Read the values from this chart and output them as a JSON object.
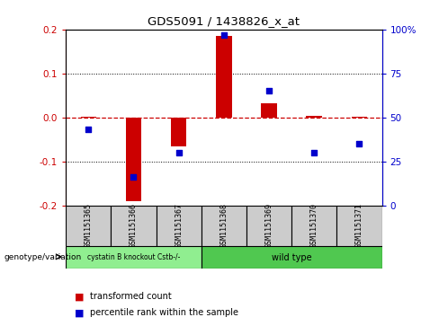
{
  "title": "GDS5091 / 1438826_x_at",
  "samples": [
    "GSM1151365",
    "GSM1151366",
    "GSM1151367",
    "GSM1151368",
    "GSM1151369",
    "GSM1151370",
    "GSM1151371"
  ],
  "red_values": [
    0.002,
    -0.19,
    -0.065,
    0.185,
    0.033,
    0.003,
    0.002
  ],
  "blue_values_pct": [
    43,
    16,
    30,
    97,
    65,
    30,
    35
  ],
  "ylim": [
    -0.2,
    0.2
  ],
  "yticks_left": [
    -0.2,
    -0.1,
    0.0,
    0.1,
    0.2
  ],
  "yticks_right": [
    0,
    25,
    50,
    75,
    100
  ],
  "ytick_labels_right": [
    "0",
    "25",
    "50",
    "75",
    "100%"
  ],
  "red_color": "#cc0000",
  "blue_color": "#0000cc",
  "group1_label": "cystatin B knockout Cstb-/-",
  "group2_label": "wild type",
  "group1_color": "#90EE90",
  "group2_color": "#50C850",
  "group1_samples": [
    0,
    1,
    2
  ],
  "group2_samples": [
    3,
    4,
    5,
    6
  ],
  "bar_width": 0.35,
  "legend_red": "transformed count",
  "legend_blue": "percentile rank within the sample"
}
